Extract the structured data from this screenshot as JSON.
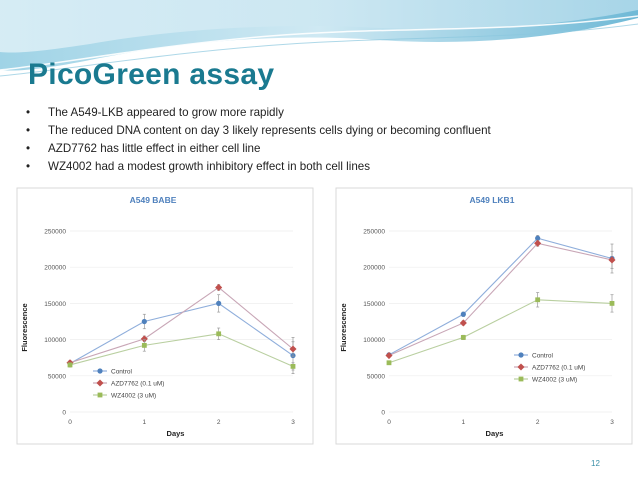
{
  "slide": {
    "title": "PicoGreen assay",
    "bullets": [
      "The A549-LKB appeared to grow more rapidly",
      "The reduced DNA content on day 3 likely represents cells dying or becoming confluent",
      "AZD7762 has little effect in either cell line",
      "WZ4002 had a modest growth inhibitory effect in both cell lines"
    ],
    "bullet_symbol": "•",
    "page_number": "12"
  },
  "colors": {
    "title": "#1a7a90",
    "chart_title": "#4f81bd",
    "control": "#4f81bd",
    "azd": "#c0504d",
    "wz": "#9bbb59"
  },
  "chart_data": [
    {
      "type": "line",
      "title": "A549 BABE",
      "xlabel": "Days",
      "ylabel": "Fluorescence",
      "x": [
        0,
        1,
        2,
        3
      ],
      "xticks": [
        "0",
        "1",
        "2",
        "3"
      ],
      "yticks": [
        "0",
        "50000",
        "100000",
        "150000",
        "200000",
        "250000"
      ],
      "ylim": [
        0,
        250000
      ],
      "legend_position": "bottom-left",
      "series": [
        {
          "name": "Control",
          "values": [
            67000,
            125000,
            150000,
            78000
          ],
          "errors": [
            3000,
            10000,
            12000,
            25000
          ]
        },
        {
          "name": "AZD7762 (0.1 uM)",
          "values": [
            68000,
            101000,
            172000,
            87000
          ],
          "errors": [
            3000,
            4000,
            4000,
            10000
          ]
        },
        {
          "name": "WZ4002 (3 uM)",
          "values": [
            65000,
            92000,
            108000,
            63000
          ],
          "errors": [
            3000,
            8000,
            8000,
            5000
          ]
        }
      ]
    },
    {
      "type": "line",
      "title": "A549 LKB1",
      "xlabel": "Days",
      "ylabel": "Fluorescence",
      "x": [
        0,
        1,
        2,
        3
      ],
      "xticks": [
        "0",
        "1",
        "2",
        "3"
      ],
      "yticks": [
        "0",
        "50000",
        "100000",
        "150000",
        "200000",
        "250000"
      ],
      "ylim": [
        0,
        250000
      ],
      "legend_position": "bottom-right",
      "series": [
        {
          "name": "Control",
          "values": [
            79000,
            135000,
            240000,
            212000
          ],
          "errors": [
            2000,
            3000,
            4000,
            20000
          ]
        },
        {
          "name": "AZD7762 (0.1 uM)",
          "values": [
            78000,
            123000,
            233000,
            210000
          ],
          "errors": [
            2000,
            3000,
            4000,
            12000
          ]
        },
        {
          "name": "WZ4002 (3 uM)",
          "values": [
            68000,
            103000,
            155000,
            150000
          ],
          "errors": [
            2000,
            3000,
            10000,
            12000
          ]
        }
      ]
    }
  ]
}
